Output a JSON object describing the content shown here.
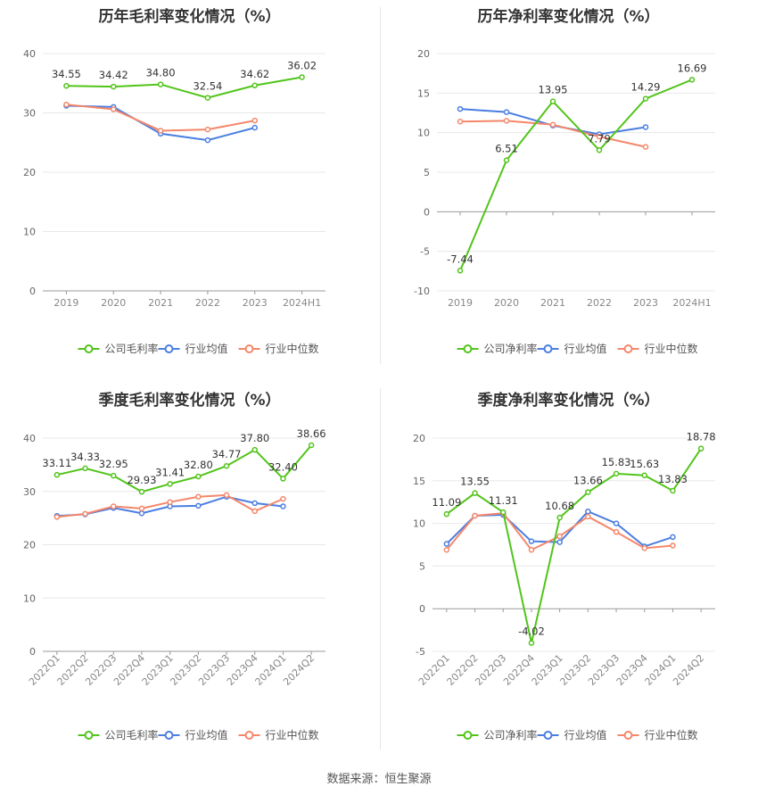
{
  "chart_data": [
    {
      "type": "line",
      "title": "历年毛利率变化情况（%）",
      "categories": [
        "2019",
        "2020",
        "2021",
        "2022",
        "2023",
        "2024H1"
      ],
      "ylim": [
        0,
        40
      ],
      "yticks": [
        0,
        10,
        20,
        30,
        40
      ],
      "rotate_ticks": false,
      "series": [
        {
          "name": "公司毛利率",
          "color": "#52c41a",
          "values": [
            34.55,
            34.42,
            34.8,
            32.54,
            34.62,
            36.02
          ],
          "labels": [
            "34.55",
            "34.42",
            "34.80",
            "32.54",
            "34.62",
            "36.02"
          ]
        },
        {
          "name": "行业均值",
          "color": "#4a7ee0",
          "values": [
            31.2,
            31.0,
            26.5,
            25.4,
            27.5,
            null
          ]
        },
        {
          "name": "行业中位数",
          "color": "#f4876a",
          "values": [
            31.4,
            30.6,
            27.0,
            27.2,
            28.7,
            null
          ]
        }
      ]
    },
    {
      "type": "line",
      "title": "历年净利率变化情况（%）",
      "categories": [
        "2019",
        "2020",
        "2021",
        "2022",
        "2023",
        "2024H1"
      ],
      "ylim": [
        -10,
        20
      ],
      "yticks": [
        -10,
        -5,
        0,
        5,
        10,
        15,
        20
      ],
      "rotate_ticks": false,
      "series": [
        {
          "name": "公司净利率",
          "color": "#52c41a",
          "values": [
            -7.44,
            6.51,
            13.95,
            7.79,
            14.29,
            16.69
          ],
          "labels": [
            "-7.44",
            "6.51",
            "13.95",
            "7.79",
            "14.29",
            "16.69"
          ]
        },
        {
          "name": "行业均值",
          "color": "#4a7ee0",
          "values": [
            13.0,
            12.6,
            10.9,
            9.8,
            10.7,
            null
          ]
        },
        {
          "name": "行业中位数",
          "color": "#f4876a",
          "values": [
            11.4,
            11.5,
            11.0,
            9.5,
            8.2,
            null
          ]
        }
      ]
    },
    {
      "type": "line",
      "title": "季度毛利率变化情况（%）",
      "categories": [
        "2022Q1",
        "2022Q2",
        "2022Q3",
        "2022Q4",
        "2023Q1",
        "2023Q2",
        "2023Q3",
        "2023Q4",
        "2024Q1",
        "2024Q2"
      ],
      "ylim": [
        0,
        40
      ],
      "yticks": [
        0,
        10,
        20,
        30,
        40
      ],
      "rotate_ticks": true,
      "series": [
        {
          "name": "公司毛利率",
          "color": "#52c41a",
          "values": [
            33.11,
            34.33,
            32.95,
            29.93,
            31.41,
            32.8,
            34.77,
            37.8,
            32.4,
            38.66
          ],
          "labels": [
            "33.11",
            "34.33",
            "32.95",
            "29.93",
            "31.41",
            "32.80",
            "34.77",
            "37.80",
            "32.40",
            "38.66"
          ]
        },
        {
          "name": "行业均值",
          "color": "#4a7ee0",
          "values": [
            25.4,
            25.7,
            26.9,
            25.9,
            27.2,
            27.3,
            29.0,
            27.8,
            27.2,
            null
          ]
        },
        {
          "name": "行业中位数",
          "color": "#f4876a",
          "values": [
            25.2,
            25.8,
            27.2,
            26.8,
            28.0,
            29.0,
            29.3,
            26.3,
            28.6,
            null
          ]
        }
      ]
    },
    {
      "type": "line",
      "title": "季度净利率变化情况（%）",
      "categories": [
        "2022Q1",
        "2022Q2",
        "2022Q3",
        "2022Q4",
        "2023Q1",
        "2023Q2",
        "2023Q3",
        "2023Q4",
        "2024Q1",
        "2024Q2"
      ],
      "ylim": [
        -5,
        20
      ],
      "yticks": [
        -5,
        0,
        5,
        10,
        15,
        20
      ],
      "rotate_ticks": true,
      "series": [
        {
          "name": "公司净利率",
          "color": "#52c41a",
          "values": [
            11.09,
            13.55,
            11.31,
            -4.02,
            10.68,
            13.66,
            15.83,
            15.63,
            13.83,
            18.78
          ],
          "labels": [
            "11.09",
            "13.55",
            "11.31",
            "-4.02",
            "10.68",
            "13.66",
            "15.83",
            "15.63",
            "13.83",
            "18.78"
          ]
        },
        {
          "name": "行业均值",
          "color": "#4a7ee0",
          "values": [
            7.6,
            10.9,
            11.0,
            7.9,
            7.8,
            11.4,
            10.0,
            7.3,
            8.4,
            null
          ]
        },
        {
          "name": "行业中位数",
          "color": "#f4876a",
          "values": [
            6.9,
            10.9,
            11.2,
            6.9,
            8.5,
            10.8,
            9.0,
            7.1,
            7.4,
            null
          ]
        }
      ]
    }
  ],
  "footer": {
    "source": "数据来源：恒生聚源"
  }
}
